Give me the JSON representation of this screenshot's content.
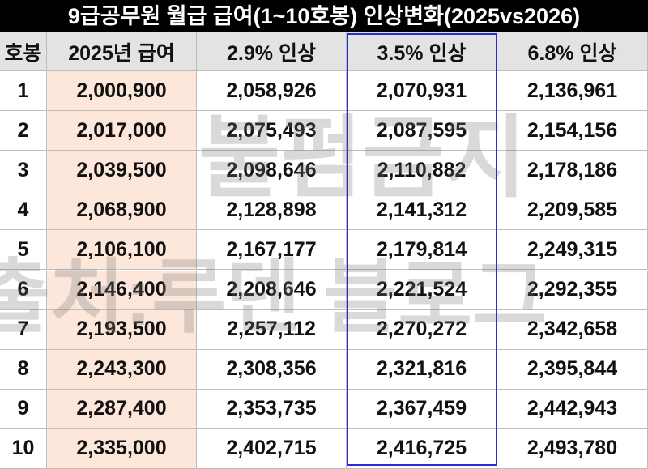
{
  "title": "9급공무원 월급 급여(1~10호봉) 인상변화(2025vs2026)",
  "table": {
    "header": [
      "호봉",
      "2025년 급여",
      "2.9% 인상",
      "3.5% 인상",
      "6.8% 인상"
    ],
    "rows": [
      [
        "1",
        "2,000,900",
        "2,058,926",
        "2,070,931",
        "2,136,961"
      ],
      [
        "2",
        "2,017,000",
        "2,075,493",
        "2,087,595",
        "2,154,156"
      ],
      [
        "3",
        "2,039,500",
        "2,098,646",
        "2,110,882",
        "2,178,186"
      ],
      [
        "4",
        "2,068,900",
        "2,128,898",
        "2,141,312",
        "2,209,585"
      ],
      [
        "5",
        "2,106,100",
        "2,167,177",
        "2,179,814",
        "2,249,315"
      ],
      [
        "6",
        "2,146,400",
        "2,208,646",
        "2,221,524",
        "2,292,355"
      ],
      [
        "7",
        "2,193,500",
        "2,257,112",
        "2,270,272",
        "2,342,658"
      ],
      [
        "8",
        "2,243,300",
        "2,308,356",
        "2,321,816",
        "2,395,844"
      ],
      [
        "9",
        "2,287,400",
        "2,353,735",
        "2,367,459",
        "2,442,943"
      ],
      [
        "10",
        "2,335,000",
        "2,402,715",
        "2,416,725",
        "2,493,780"
      ]
    ]
  },
  "watermark": [
    "불펌금지",
    "출처:루덴 블로그"
  ]
}
